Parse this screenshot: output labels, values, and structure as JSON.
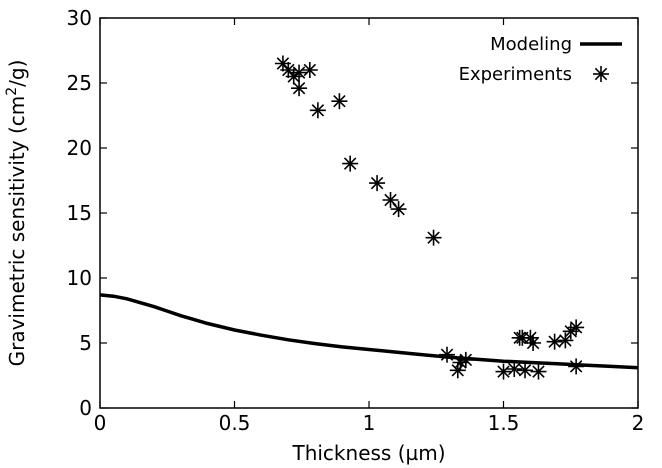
{
  "chart_data": {
    "type": "line",
    "xlabel": "Thickness (µm)",
    "ylabel_prefix": "Gravimetric sensitivity (cm",
    "ylabel_sup": "2",
    "ylabel_suffix": "/g)",
    "xlim": [
      0,
      2
    ],
    "ylim": [
      0,
      30
    ],
    "xticks": [
      0,
      0.5,
      1,
      1.5,
      2
    ],
    "xtick_labels": [
      "0",
      "0.5",
      "1",
      "1.5",
      "2"
    ],
    "yticks": [
      0,
      5,
      10,
      15,
      20,
      25,
      30
    ],
    "ytick_labels": [
      "0",
      "5",
      "10",
      "15",
      "20",
      "25",
      "30"
    ],
    "grid": false,
    "legend_position": "top-right",
    "series": [
      {
        "name": "Modeling",
        "type": "line",
        "color": "#000000",
        "x": [
          0,
          0.05,
          0.1,
          0.15,
          0.2,
          0.25,
          0.3,
          0.35,
          0.4,
          0.5,
          0.6,
          0.7,
          0.8,
          0.9,
          1.0,
          1.1,
          1.2,
          1.3,
          1.4,
          1.5,
          1.6,
          1.7,
          1.8,
          1.9,
          2.0
        ],
        "y": [
          8.7,
          8.6,
          8.4,
          8.1,
          7.8,
          7.45,
          7.1,
          6.8,
          6.5,
          6.0,
          5.6,
          5.25,
          4.95,
          4.7,
          4.5,
          4.3,
          4.1,
          3.9,
          3.75,
          3.6,
          3.5,
          3.4,
          3.3,
          3.2,
          3.1
        ]
      },
      {
        "name": "Experiments",
        "type": "scatter",
        "marker": "asterisk",
        "color": "#000000",
        "x": [
          0.68,
          0.7,
          0.72,
          0.74,
          0.74,
          0.78,
          0.81,
          0.89,
          0.93,
          1.03,
          1.08,
          1.11,
          1.24,
          1.29,
          1.33,
          1.34,
          1.36,
          1.5,
          1.54,
          1.56,
          1.58,
          1.57,
          1.6,
          1.61,
          1.63,
          1.69,
          1.73,
          1.75,
          1.77,
          1.77
        ],
        "y": [
          26.5,
          26.0,
          25.5,
          25.8,
          24.6,
          26.0,
          22.9,
          23.6,
          18.8,
          17.3,
          16.0,
          15.3,
          13.1,
          4.1,
          2.9,
          3.5,
          3.7,
          2.8,
          3.0,
          5.4,
          2.9,
          5.4,
          5.4,
          5.0,
          2.8,
          5.1,
          5.2,
          5.9,
          6.2,
          3.2
        ]
      }
    ]
  }
}
